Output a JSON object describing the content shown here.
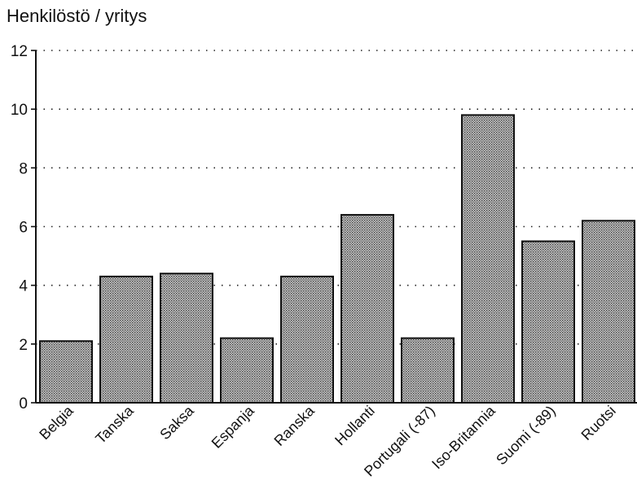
{
  "chart_data": {
    "type": "bar",
    "title": "Henkilöstö / yritys",
    "xlabel": "",
    "ylabel": "",
    "categories": [
      "Belgia",
      "Tanska",
      "Saksa",
      "Espanja",
      "Ranska",
      "Hollanti",
      "Portugali (-87)",
      "Iso-Britannia",
      "Suomi (-89)",
      "Ruotsi"
    ],
    "values": [
      2.1,
      4.3,
      4.4,
      2.2,
      4.3,
      6.4,
      2.2,
      9.8,
      5.5,
      6.2
    ],
    "ylim": [
      0,
      12
    ],
    "yticks": [
      "0",
      "2",
      "4",
      "6",
      "8",
      "10",
      "12"
    ],
    "grid": true,
    "legend": "none",
    "bar_fill": "#b9b9b9",
    "bar_stroke": "#111111"
  }
}
